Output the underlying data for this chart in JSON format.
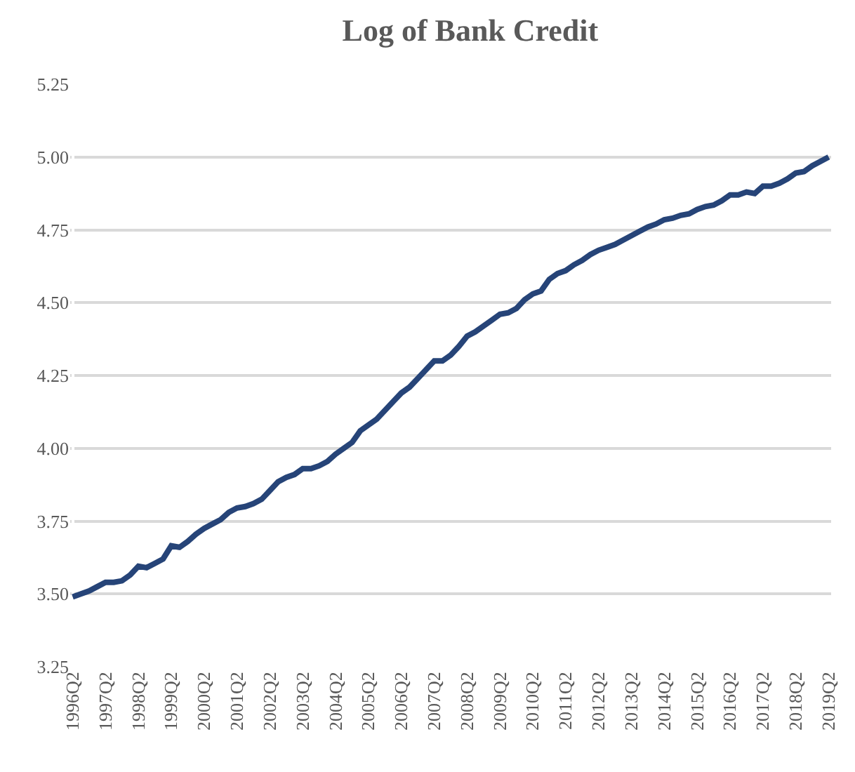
{
  "chart_data": {
    "type": "line",
    "title": "Log of Bank Credit",
    "categories": [
      "1996Q2",
      null,
      null,
      null,
      "1997Q2",
      null,
      null,
      null,
      "1998Q2",
      null,
      null,
      null,
      "1999Q2",
      null,
      null,
      null,
      "2000Q2",
      null,
      null,
      null,
      "2001Q2",
      null,
      null,
      null,
      "2002Q2",
      null,
      null,
      null,
      "2003Q2",
      null,
      null,
      null,
      "2004Q2",
      null,
      null,
      null,
      "2005Q2",
      null,
      null,
      null,
      "2006Q2",
      null,
      null,
      null,
      "2007Q2",
      null,
      null,
      null,
      "2008Q2",
      null,
      null,
      null,
      "2009Q2",
      null,
      null,
      null,
      "2010Q2",
      null,
      null,
      null,
      "2011Q2",
      null,
      null,
      null,
      "2012Q2",
      null,
      null,
      null,
      "2013Q2",
      null,
      null,
      null,
      "2014Q2",
      null,
      null,
      null,
      "2015Q2",
      null,
      null,
      null,
      "2016Q2",
      null,
      null,
      null,
      "2017Q2",
      null,
      null,
      null,
      "2018Q2",
      null,
      null,
      null,
      "2019Q2"
    ],
    "series": [
      {
        "color": "#264478",
        "values": [
          3.49,
          3.5,
          3.51,
          3.525,
          3.54,
          3.54,
          3.545,
          3.565,
          3.595,
          3.59,
          3.605,
          3.62,
          3.665,
          3.66,
          3.68,
          3.705,
          3.725,
          3.74,
          3.755,
          3.78,
          3.795,
          3.8,
          3.81,
          3.825,
          3.855,
          3.885,
          3.9,
          3.91,
          3.93,
          3.93,
          3.94,
          3.955,
          3.98,
          4.0,
          4.02,
          4.06,
          4.08,
          4.1,
          4.13,
          4.16,
          4.19,
          4.21,
          4.24,
          4.27,
          4.3,
          4.3,
          4.32,
          4.35,
          4.385,
          4.4,
          4.42,
          4.44,
          4.46,
          4.465,
          4.48,
          4.51,
          4.53,
          4.54,
          4.58,
          4.6,
          4.61,
          4.63,
          4.645,
          4.665,
          4.68,
          4.69,
          4.7,
          4.715,
          4.73,
          4.745,
          4.76,
          4.77,
          4.785,
          4.79,
          4.8,
          4.805,
          4.82,
          4.83,
          4.835,
          4.85,
          4.87,
          4.87,
          4.88,
          4.875,
          4.9,
          4.9,
          4.91,
          4.925,
          4.945,
          4.95,
          4.97,
          4.985,
          5.0
        ]
      }
    ],
    "ylim": [
      3.25,
      5.25
    ],
    "yticks": [
      {
        "value": 3.25,
        "label": "3.25"
      },
      {
        "value": 3.5,
        "label": "3.50"
      },
      {
        "value": 3.75,
        "label": "3.75"
      },
      {
        "value": 4.0,
        "label": "4.00"
      },
      {
        "value": 4.25,
        "label": "4.25"
      },
      {
        "value": 4.5,
        "label": "4.50"
      },
      {
        "value": 4.75,
        "label": "4.75"
      },
      {
        "value": 5.0,
        "label": "5.00"
      },
      {
        "value": 5.25,
        "label": "5.25"
      }
    ],
    "grid": "y",
    "marker": "none",
    "line_style": "solid"
  }
}
